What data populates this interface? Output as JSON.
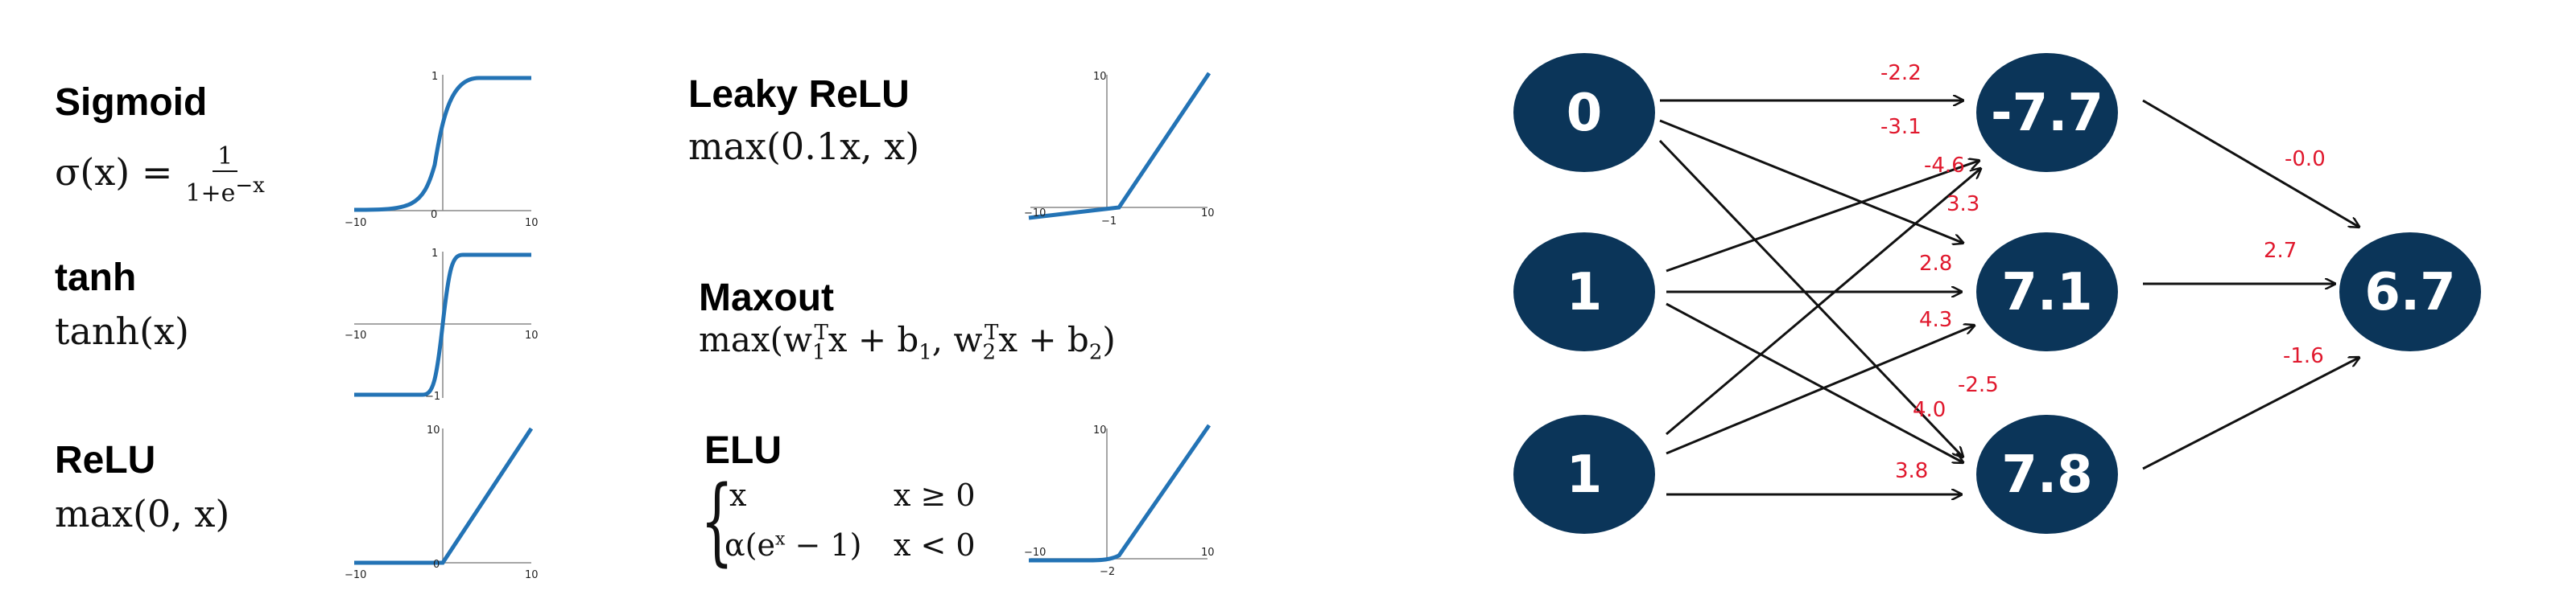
{
  "activations": {
    "sigmoid": {
      "name": "Sigmoid",
      "lhs": "σ(x) =",
      "num": "1",
      "den_base": "1+e",
      "den_exp": "−x",
      "ticks": {
        "x_left": "−10",
        "x_mid": "0",
        "x_right": "10",
        "y_top": "1"
      }
    },
    "tanh": {
      "name": "tanh",
      "formula": "tanh(x)",
      "ticks": {
        "x_left": "−10",
        "x_right": "10",
        "y_top": "1",
        "y_bottom": "−1"
      }
    },
    "relu": {
      "name": "ReLU",
      "formula": "max(0, x)",
      "ticks": {
        "x_left": "−10",
        "x_mid": "0",
        "x_right": "10",
        "y_top": "10"
      }
    },
    "leaky_relu": {
      "name": "Leaky ReLU",
      "formula": "max(0.1x, x)",
      "ticks": {
        "x_left": "−10",
        "x_mid": "−1",
        "x_right": "10",
        "y_top": "10"
      }
    },
    "maxout": {
      "name": "Maxout",
      "f1": "max(w",
      "f1_sub": "1",
      "f1_sup": "T",
      "f2": "x + b",
      "f2_sub": "1",
      "f3": ", w",
      "f3_sub": "2",
      "f3_sup": "T",
      "f4": "x + b",
      "f4_sub": "2",
      "f5": ")"
    },
    "elu": {
      "name": "ELU",
      "case1_expr": "x",
      "case1_cond": "x ≥ 0",
      "case2_expr_a": "α(e",
      "case2_expr_sup": "x",
      "case2_expr_b": " − 1)",
      "case2_cond": "x < 0",
      "ticks": {
        "x_left": "−10",
        "x_mid": "−2",
        "x_right": "10",
        "y_top": "10"
      }
    }
  },
  "network": {
    "node_color": "#0b3559",
    "inputs": [
      "0",
      "1",
      "1"
    ],
    "hidden": [
      "-7.7",
      "7.1",
      "7.8"
    ],
    "output": "6.7",
    "weights_in": [
      {
        "label": "-2.2"
      },
      {
        "label": "-3.1"
      },
      {
        "label": "-4.6"
      },
      {
        "label": "3.3"
      },
      {
        "label": "2.8"
      },
      {
        "label": "4.3"
      },
      {
        "label": "-2.5"
      },
      {
        "label": "4.0"
      },
      {
        "label": "3.8"
      }
    ],
    "weights_out": [
      {
        "label": "-0.0"
      },
      {
        "label": "2.7"
      },
      {
        "label": "-1.6"
      }
    ],
    "label_color": "#e0182d"
  }
}
